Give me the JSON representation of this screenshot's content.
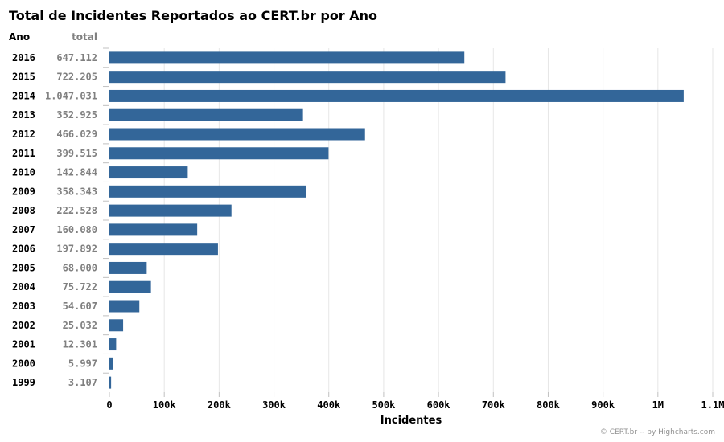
{
  "chart_data": {
    "type": "bar",
    "orientation": "horizontal",
    "title": "Total de Incidentes Reportados ao CERT.br por Ano",
    "category_header": "Ano",
    "value_header": "total",
    "xlabel": "Incidentes",
    "xlim": [
      0,
      1100000
    ],
    "xticks": [
      0,
      100000,
      200000,
      300000,
      400000,
      500000,
      600000,
      700000,
      800000,
      900000,
      1000000,
      1100000
    ],
    "xtick_labels": [
      "0",
      "100k",
      "200k",
      "300k",
      "400k",
      "500k",
      "600k",
      "700k",
      "800k",
      "900k",
      "1M",
      "1.1M"
    ],
    "categories": [
      "2016",
      "2015",
      "2014",
      "2013",
      "2012",
      "2011",
      "2010",
      "2009",
      "2008",
      "2007",
      "2006",
      "2005",
      "2004",
      "2003",
      "2002",
      "2001",
      "2000",
      "1999"
    ],
    "values": [
      647112,
      722205,
      1047031,
      352925,
      466029,
      399515,
      142844,
      358343,
      222528,
      160080,
      197892,
      68000,
      75722,
      54607,
      25032,
      12301,
      5997,
      3107
    ],
    "value_labels": [
      "647.112",
      "722.205",
      "1.047.031",
      "352.925",
      "466.029",
      "399.515",
      "142.844",
      "358.343",
      "222.528",
      "160.080",
      "197.892",
      "68.000",
      "75.722",
      "54.607",
      "25.032",
      "12.301",
      "5.997",
      "3.107"
    ],
    "bar_color": "#336699",
    "grid": true,
    "legend": "none"
  },
  "credits": "© CERT.br -- by Highcharts.com"
}
